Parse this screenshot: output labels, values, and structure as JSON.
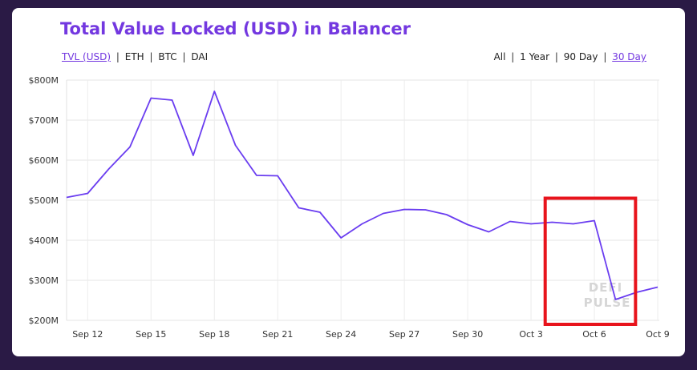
{
  "title": "Total Value Locked (USD) in Balancer",
  "metric_options": [
    {
      "label": "TVL (USD)",
      "active": true
    },
    {
      "label": "ETH",
      "active": false
    },
    {
      "label": "BTC",
      "active": false
    },
    {
      "label": "DAI",
      "active": false
    }
  ],
  "range_options": [
    {
      "label": "All",
      "active": false
    },
    {
      "label": "1 Year",
      "active": false
    },
    {
      "label": "90 Day",
      "active": false
    },
    {
      "label": "30 Day",
      "active": true
    }
  ],
  "separator": "|",
  "watermark": [
    "DEFI",
    "PULSE"
  ],
  "colors": {
    "accent": "#7338e0",
    "line": "#6a3df0",
    "highlight": "#e8141c",
    "background": "#2a1a45"
  },
  "chart_data": {
    "type": "line",
    "title": "Total Value Locked (USD) in Balancer",
    "xlabel": "",
    "ylabel": "",
    "x_start": "Sep 11",
    "x_end": "Oct 9",
    "ylim": [
      200,
      800
    ],
    "y_unit": "$M",
    "y_ticks": [
      200,
      300,
      400,
      500,
      600,
      700,
      800
    ],
    "y_tick_labels": [
      "$200M",
      "$300M",
      "$400M",
      "$500M",
      "$600M",
      "$700M",
      "$800M"
    ],
    "x_tick_labels": [
      "Sep 12",
      "Sep 15",
      "Sep 18",
      "Sep 21",
      "Sep 24",
      "Sep 27",
      "Sep 30",
      "Oct 3",
      "Oct 6",
      "Oct 9"
    ],
    "grid": true,
    "legend": "none",
    "x": [
      "Sep 11",
      "Sep 12",
      "Sep 13",
      "Sep 14",
      "Sep 15",
      "Sep 16",
      "Sep 17",
      "Sep 18",
      "Sep 19",
      "Sep 20",
      "Sep 21",
      "Sep 22",
      "Sep 23",
      "Sep 24",
      "Sep 25",
      "Sep 26",
      "Sep 27",
      "Sep 28",
      "Sep 29",
      "Sep 30",
      "Oct 1",
      "Oct 2",
      "Oct 3",
      "Oct 4",
      "Oct 5",
      "Oct 6",
      "Oct 7",
      "Oct 8",
      "Oct 9"
    ],
    "values": [
      507,
      517,
      578,
      633,
      755,
      750,
      612,
      772,
      637,
      562,
      561,
      481,
      470,
      406,
      441,
      467,
      477,
      476,
      464,
      439,
      421,
      447,
      441,
      445,
      441,
      449,
      252,
      270,
      283
    ],
    "annotations": [
      {
        "type": "highlight-box",
        "color": "#e8141c",
        "x_range": [
          "Oct 5",
          "Oct 7"
        ],
        "y_range": [
          190,
          505
        ]
      }
    ]
  }
}
